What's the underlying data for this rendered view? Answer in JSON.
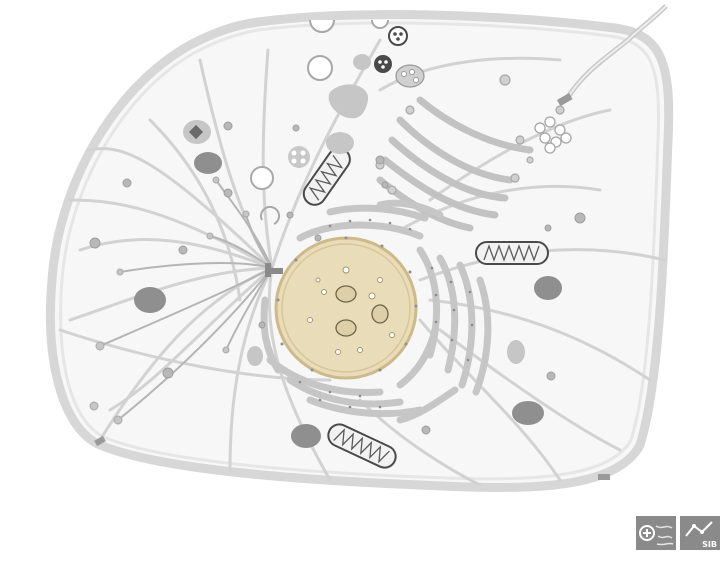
{
  "figure": {
    "colors": {
      "membrane": "#d7d7d7",
      "cytoplasm": "#f7f7f7",
      "filament": "#cfcfcf",
      "organelle_light": "#c4c4c4",
      "organelle_dark": "#8f8f8f",
      "nucleus_fill": "#e9dcb8",
      "nucleus_rim": "#cdb98a",
      "mitochondrion_outline": "#4a4a4a",
      "logo_background": "#8a8a8a"
    },
    "logos": [
      {
        "name": "expasy-logo-icon"
      },
      {
        "name": "sib-logo-icon",
        "text": "SIB"
      }
    ]
  }
}
